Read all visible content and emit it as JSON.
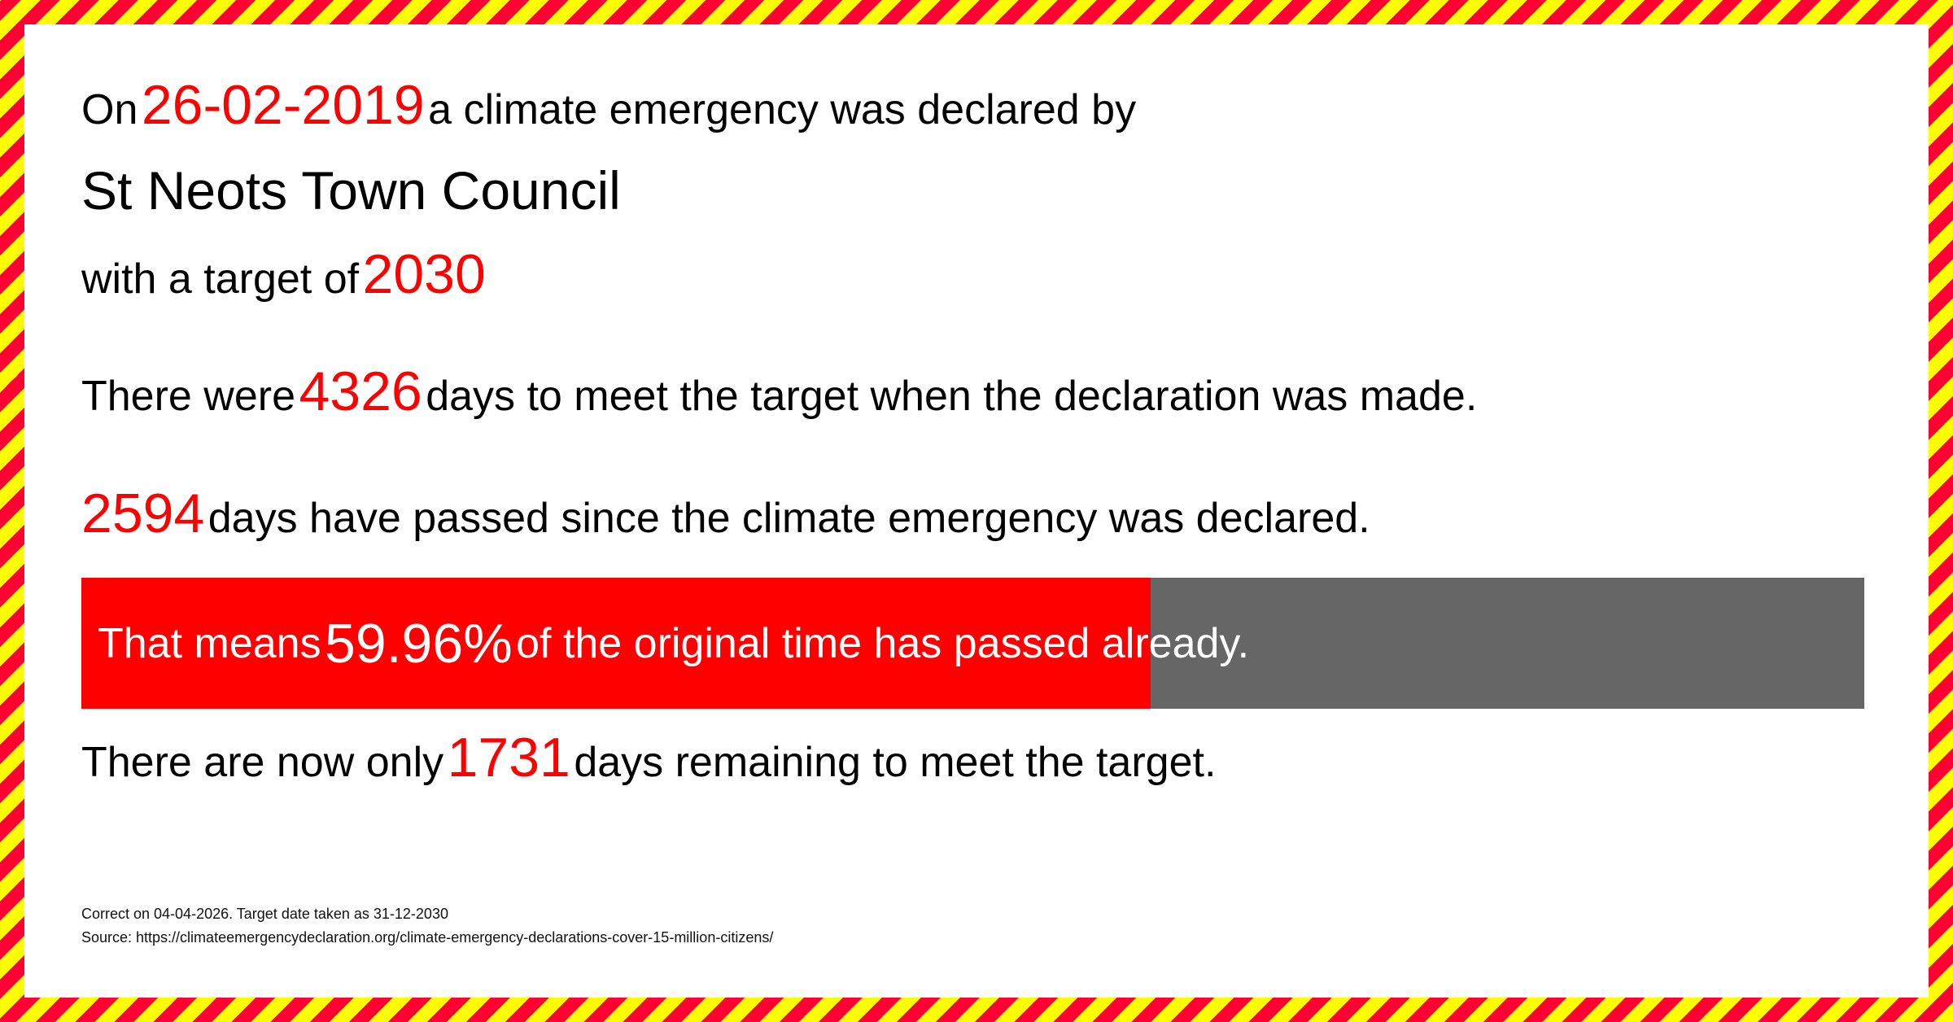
{
  "line1": {
    "prefix": "On",
    "date": "26-02-2019",
    "suffix": "a climate emergency was declared by"
  },
  "council": "St Neots Town Council",
  "line3": {
    "prefix": "with a target of",
    "year": "2030"
  },
  "line4": {
    "prefix": "There were",
    "days": "4326",
    "suffix": "days to meet the target when the declaration was made."
  },
  "line5": {
    "days": "2594",
    "suffix": "days have passed since the climate emergency was declared."
  },
  "progress": {
    "prefix": "That means",
    "percent": "59.96%",
    "suffix": "of the original time has passed already.",
    "value": 59.96,
    "fill_color": "#ff0000",
    "track_color": "#666666"
  },
  "line7": {
    "prefix": "There are now only",
    "days": "1731",
    "suffix": "days remaining to meet the target."
  },
  "footer": {
    "correct": "Correct on 04-04-2026. Target date taken as 31-12-2030",
    "source": "Source: https://climateemergencydeclaration.org/climate-emergency-declarations-cover-15-million-citizens/"
  },
  "colors": {
    "accent": "#ff0000",
    "stripe_a": "#ffff00",
    "stripe_b": "#ff0033"
  }
}
